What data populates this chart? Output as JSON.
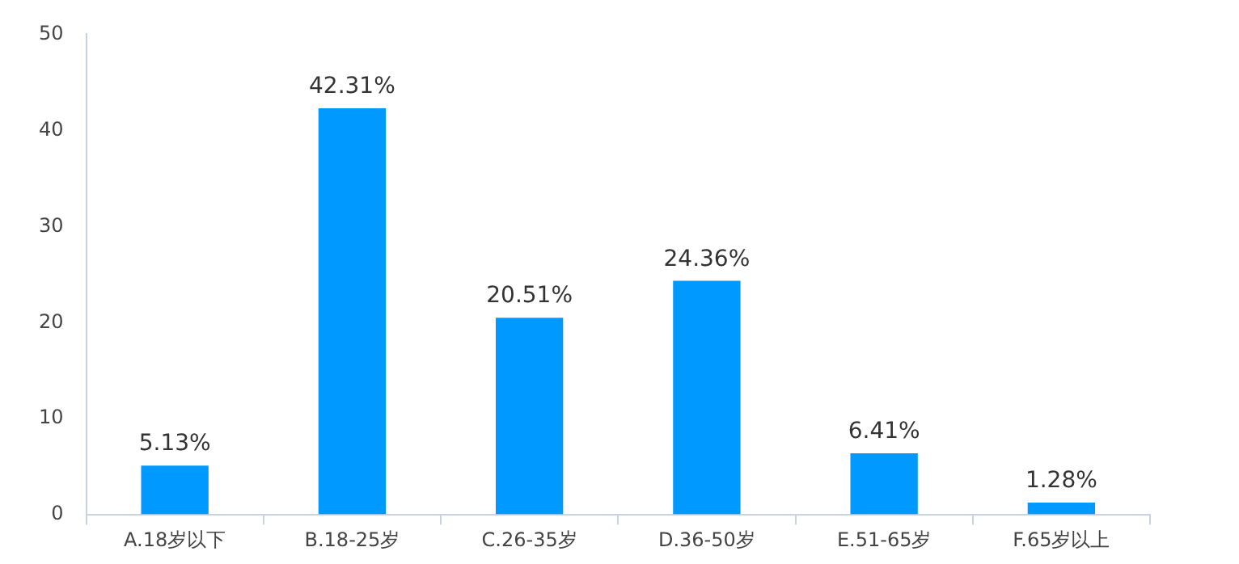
{
  "chart_data": {
    "type": "bar",
    "categories": [
      "A.18岁以下",
      "B.18-25岁",
      "C.26-35岁",
      "D.36-50岁",
      "E.51-65岁",
      "F.65岁以上"
    ],
    "values": [
      5.13,
      42.31,
      20.51,
      24.36,
      6.41,
      1.28
    ],
    "value_labels": [
      "5.13%",
      "42.31%",
      "20.51%",
      "24.36%",
      "6.41%",
      "1.28%"
    ],
    "color": "#0099ff",
    "ylim": [
      0,
      50
    ],
    "yticks": [
      0,
      10,
      20,
      30,
      40,
      50
    ],
    "grid": false,
    "legend": false
  }
}
